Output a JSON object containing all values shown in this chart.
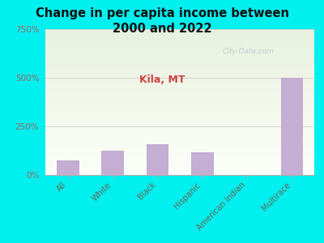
{
  "title": "Change in per capita income between\n2000 and 2022",
  "subtitle": "Kila, MT",
  "categories": [
    "All",
    "White",
    "Black",
    "Hispanic",
    "American Indian",
    "Multirace"
  ],
  "values": [
    75,
    125,
    160,
    115,
    0,
    500
  ],
  "bar_color": "#c4aed4",
  "background_color": "#00EFEF",
  "title_fontsize": 10.5,
  "subtitle_fontsize": 9,
  "ylabel_color": "#996666",
  "subtitle_color": "#cc4444",
  "title_color": "#111111",
  "ylim": [
    0,
    750
  ],
  "yticks": [
    0,
    250,
    500,
    750
  ],
  "ytick_labels": [
    "0%",
    "250%",
    "500%",
    "750%"
  ],
  "watermark": "City-Data.com",
  "chart_bg_color_top": "#f8faf2",
  "chart_bg_color_bottom": "#e8f2dc"
}
